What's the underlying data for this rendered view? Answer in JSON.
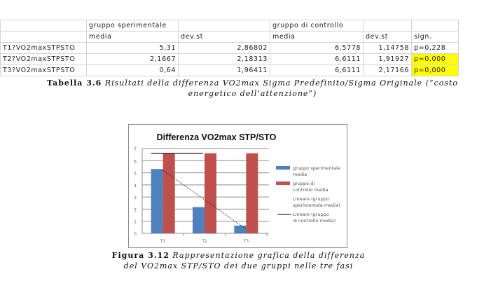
{
  "table": {
    "group_headers": [
      "gruppo sperimentale",
      "gruppo di controllo"
    ],
    "sub_headers": [
      "media",
      "dev.st",
      "media",
      "dev.st",
      "sign."
    ],
    "rows": [
      {
        "label": "T1?VO2maxSTPSTO",
        "sp_media": "5,31",
        "sp_dev": "2,86802",
        "co_media": "6,5778",
        "co_dev": "1,14758",
        "sign": "p=0,228",
        "highlight": false
      },
      {
        "label": "T2?VO2maxSTPSTO",
        "sp_media": "2,1667",
        "sp_dev": "2,18313",
        "co_media": "6,6111",
        "co_dev": "1,91927",
        "sign": "p=0,000",
        "highlight": true
      },
      {
        "label": "T3?VO2maxSTPSTO",
        "sp_media": "0,64",
        "sp_dev": "1,96411",
        "co_media": "6,6111",
        "co_dev": "2,17166",
        "sign": "p=0,000",
        "highlight": true
      }
    ],
    "highlight_color": "#ffff00"
  },
  "table_caption": {
    "label": "Tabella 3.6",
    "line1": "Risultati della differenza VO2max Sigma Predefinito/Sigma Originale (“costo",
    "line2": "energetico dell’attenzione”)"
  },
  "chart_data": {
    "type": "bar",
    "title": "Differenza VO2max STP/STO",
    "categories": [
      "T1",
      "T2",
      "T3"
    ],
    "series": [
      {
        "name": "gruppo sperimentale media",
        "values": [
          5.31,
          2.1667,
          0.64
        ],
        "color": "#4f81bd"
      },
      {
        "name": "gruppo di controllo media",
        "values": [
          6.5778,
          6.6111,
          6.6111
        ],
        "color": "#c0504d"
      }
    ],
    "trendlines": [
      {
        "name": "Lineare (gruppo sperimentale media)",
        "from": 5.2,
        "to": 0.35,
        "style": "dotted"
      },
      {
        "name": "Lineare (gruppo di controllo media)",
        "from": 6.6,
        "to": 6.6,
        "style": "solid"
      }
    ],
    "yticks": [
      0,
      1,
      2,
      3,
      4,
      5,
      6,
      7
    ],
    "ylim": [
      0,
      7
    ],
    "grid": true,
    "legend": "right"
  },
  "figure_caption": {
    "label": "Figura 3.12",
    "line1": "Rappresentazione grafica della differenza",
    "line2": "del VO2max STP/STO dei due gruppi nelle tre fasi"
  }
}
